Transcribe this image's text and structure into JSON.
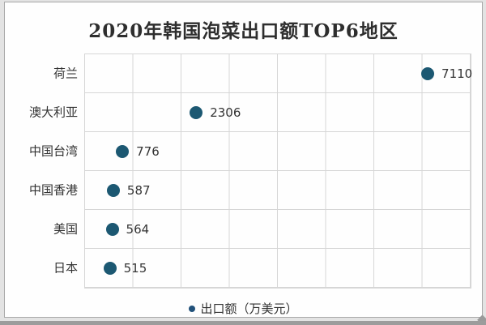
{
  "page": {
    "background": "#e3e3e3",
    "card_background": "#fefefe",
    "card_border": "#a8a8a8",
    "bottom_strip_color": "#9c9c9c"
  },
  "chart_data": {
    "type": "scatter",
    "title": "2020年韩国泡菜出口额TOP6地区",
    "categories": [
      "荷兰",
      "澳大利亚",
      "中国台湾",
      "中国香港",
      "美国",
      "日本"
    ],
    "values": [
      7110,
      2306,
      776,
      587,
      564,
      515
    ],
    "value_labels": [
      "7110",
      "2306",
      "776",
      "587",
      "564",
      "515"
    ],
    "series_name": "出口额（万美元）",
    "legend": "出口额（万美元）",
    "legend_position": "bottom",
    "unit": "万美元",
    "xlim": [
      0,
      8000
    ],
    "x_gridline_step": 1000,
    "grid": true,
    "orientation": "horizontal",
    "dot_color": "#1c5872",
    "grid_color": "#d6d6d6",
    "text_color": "#333333",
    "title_color": "#2e2e2e"
  }
}
